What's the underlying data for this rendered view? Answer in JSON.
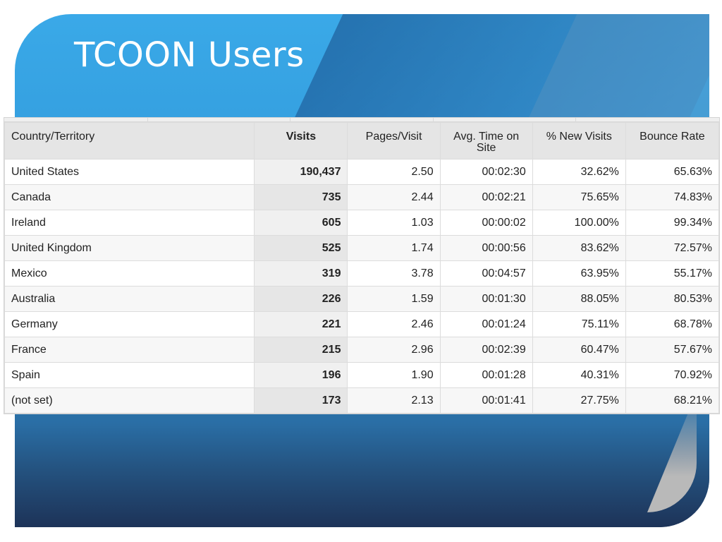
{
  "slide": {
    "title": "TCOON Users"
  },
  "table": {
    "headers": {
      "country": "Country/Territory",
      "visits": "Visits",
      "pages_per_visit": "Pages/Visit",
      "avg_time": "Avg. Time on Site",
      "new_visits": "% New Visits",
      "bounce_rate": "Bounce Rate"
    },
    "rows": [
      {
        "country": "United States",
        "visits": "190,437",
        "pages": "2.50",
        "time": "00:02:30",
        "new": "32.62%",
        "bounce": "65.63%"
      },
      {
        "country": "Canada",
        "visits": "735",
        "pages": "2.44",
        "time": "00:02:21",
        "new": "75.65%",
        "bounce": "74.83%"
      },
      {
        "country": "Ireland",
        "visits": "605",
        "pages": "1.03",
        "time": "00:00:02",
        "new": "100.00%",
        "bounce": "99.34%"
      },
      {
        "country": "United Kingdom",
        "visits": "525",
        "pages": "1.74",
        "time": "00:00:56",
        "new": "83.62%",
        "bounce": "72.57%"
      },
      {
        "country": "Mexico",
        "visits": "319",
        "pages": "3.78",
        "time": "00:04:57",
        "new": "63.95%",
        "bounce": "55.17%"
      },
      {
        "country": "Australia",
        "visits": "226",
        "pages": "1.59",
        "time": "00:01:30",
        "new": "88.05%",
        "bounce": "80.53%"
      },
      {
        "country": "Germany",
        "visits": "221",
        "pages": "2.46",
        "time": "00:01:24",
        "new": "75.11%",
        "bounce": "68.78%"
      },
      {
        "country": "France",
        "visits": "215",
        "pages": "2.96",
        "time": "00:02:39",
        "new": "60.47%",
        "bounce": "57.67%"
      },
      {
        "country": "Spain",
        "visits": "196",
        "pages": "1.90",
        "time": "00:01:28",
        "new": "40.31%",
        "bounce": "70.92%"
      },
      {
        "country": "(not set)",
        "visits": "173",
        "pages": "2.13",
        "time": "00:01:41",
        "new": "27.75%",
        "bounce": "68.21%"
      }
    ]
  },
  "colors": {
    "slide_blue": "#3aa9e8",
    "slide_dark": "#1d3358",
    "header_bg": "#e5e5e5"
  }
}
